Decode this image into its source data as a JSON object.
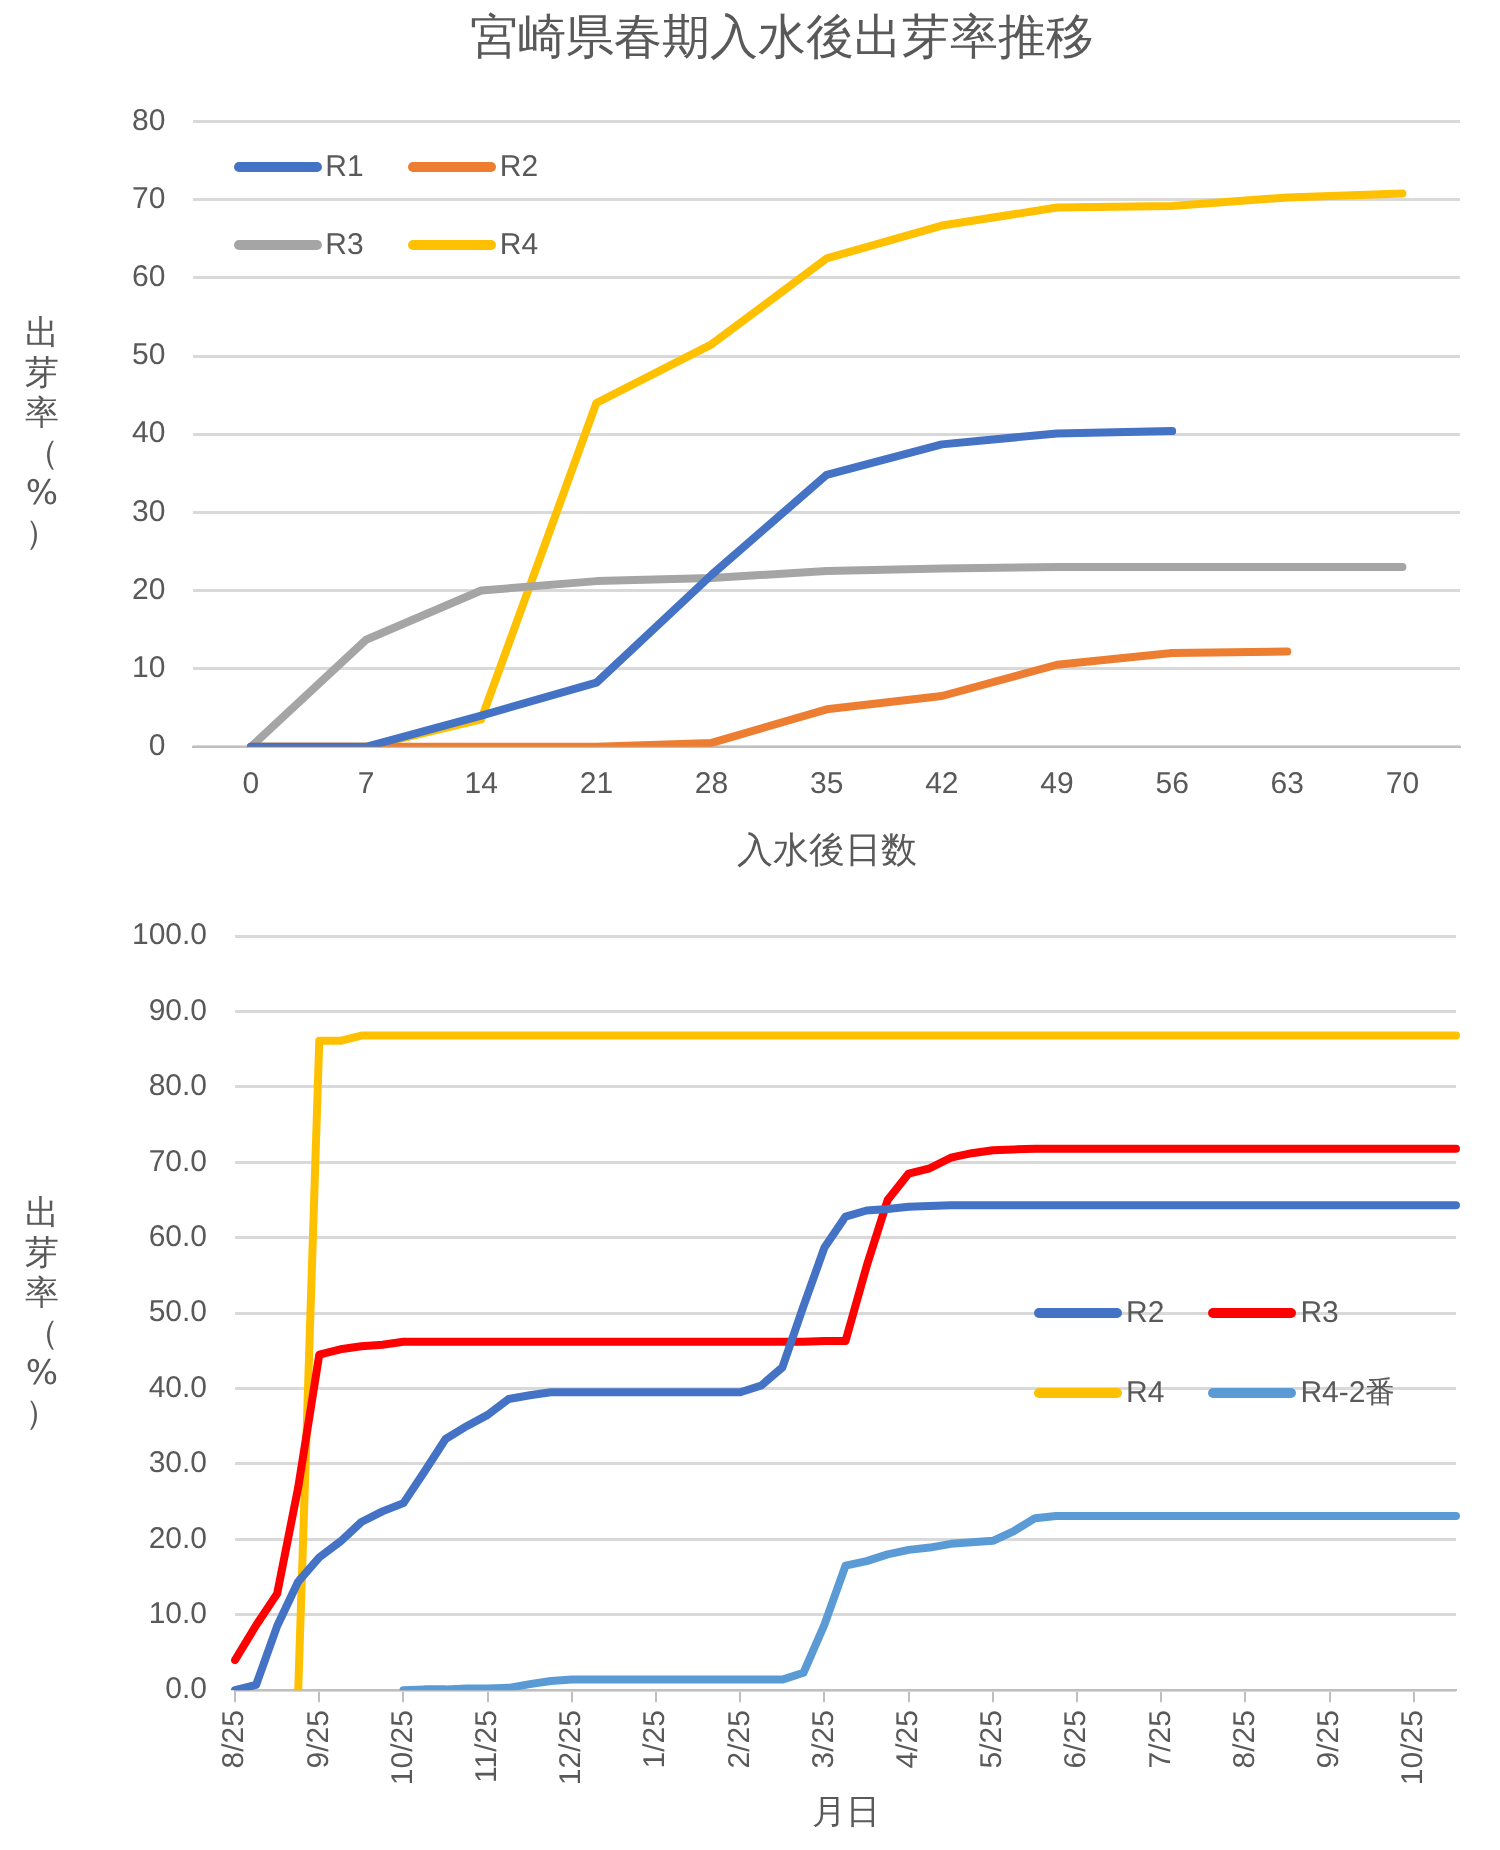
{
  "chart_data": [
    {
      "type": "line",
      "title": "宮崎県春期入水後出芽率推移",
      "xlabel": "入水後日数",
      "ylabel": "出芽率（%）",
      "categories": [
        "0",
        "7",
        "14",
        "21",
        "28",
        "35",
        "42",
        "49",
        "56",
        "63",
        "70"
      ],
      "series": [
        {
          "name": "R1",
          "color": "#4472c4",
          "values": [
            0,
            0,
            4,
            8.2,
            22,
            34.8,
            38.7,
            40.1,
            40.4,
            null,
            null
          ]
        },
        {
          "name": "R2",
          "color": "#ed7d31",
          "values": [
            0,
            0,
            0,
            0,
            0.5,
            4.8,
            6.5,
            10.5,
            12,
            12.2,
            null
          ]
        },
        {
          "name": "R3",
          "color": "#a5a5a5",
          "values": [
            0,
            13.7,
            20,
            21.2,
            21.6,
            22.5,
            22.8,
            23,
            23,
            23,
            23
          ]
        },
        {
          "name": "R4",
          "color": "#ffc000",
          "values": [
            0,
            0,
            3.5,
            44,
            51.5,
            62.5,
            66.7,
            69,
            69.2,
            70.3,
            70.8
          ]
        }
      ],
      "ylim": [
        0,
        80
      ],
      "yticks": [
        0,
        10,
        20,
        30,
        40,
        50,
        60,
        70,
        80
      ],
      "grid": "y",
      "legend": "top left"
    },
    {
      "type": "line",
      "xlabel": "月日",
      "ylabel": "出芽率（%）",
      "categories": [
        "8/25",
        null,
        null,
        null,
        "9/25",
        null,
        null,
        null,
        "10/25",
        null,
        null,
        null,
        "11/25",
        null,
        null,
        null,
        "12/25",
        null,
        null,
        null,
        "1/25",
        null,
        null,
        null,
        "2/25",
        null,
        null,
        null,
        "3/25",
        null,
        null,
        null,
        "4/25",
        null,
        null,
        null,
        "5/25",
        null,
        null,
        null,
        "6/25",
        null,
        null,
        null,
        "7/25",
        null,
        null,
        null,
        "8/25",
        null,
        null,
        null,
        "9/25",
        null,
        null,
        null,
        "10/25",
        null,
        null
      ],
      "series": [
        {
          "name": "R2",
          "color": "#4472c4",
          "values": [
            0,
            0.7,
            8.5,
            14.4,
            17.6,
            19.7,
            22.3,
            23.7,
            24.8,
            29,
            33.3,
            35,
            36.5,
            38.6,
            39.1,
            39.5,
            39.5,
            39.5,
            39.5,
            39.5,
            39.5,
            39.5,
            39.5,
            39.5,
            39.5,
            40.4,
            42.8,
            50.9,
            58.7,
            62.8,
            63.6,
            63.8,
            64.1,
            64.2,
            64.3,
            64.3,
            64.3,
            64.3,
            64.3,
            64.3,
            64.3,
            64.3,
            64.3,
            64.3,
            64.3,
            64.3,
            64.3,
            64.3,
            64.3,
            64.3,
            64.3,
            64.3,
            64.3,
            64.3,
            64.3,
            64.3,
            64.3,
            64.3,
            64.3
          ]
        },
        {
          "name": "R3",
          "color": "#ff0000",
          "values": [
            4,
            8.6,
            12.8,
            26.9,
            44.5,
            45.2,
            45.6,
            45.8,
            46.2,
            46.2,
            46.2,
            46.2,
            46.2,
            46.2,
            46.2,
            46.2,
            46.2,
            46.2,
            46.2,
            46.2,
            46.2,
            46.2,
            46.2,
            46.2,
            46.2,
            46.2,
            46.2,
            46.2,
            46.3,
            46.3,
            56.2,
            65,
            68.5,
            69.2,
            70.6,
            71.2,
            71.6,
            71.7,
            71.8,
            71.8,
            71.8,
            71.8,
            71.8,
            71.8,
            71.8,
            71.8,
            71.8,
            71.8,
            71.8,
            71.8,
            71.8,
            71.8,
            71.8,
            71.8,
            71.8,
            71.8,
            71.8,
            71.8,
            71.8
          ]
        },
        {
          "name": "R4",
          "color": "#ffc000",
          "values": [
            null,
            null,
            null,
            0,
            86.1,
            86.1,
            86.8,
            86.8,
            86.8,
            86.8,
            86.8,
            86.8,
            86.8,
            86.8,
            86.8,
            86.8,
            86.8,
            86.8,
            86.8,
            86.8,
            86.8,
            86.8,
            86.8,
            86.8,
            86.8,
            86.8,
            86.8,
            86.8,
            86.8,
            86.8,
            86.8,
            86.8,
            86.8,
            86.8,
            86.8,
            86.8,
            86.8,
            86.8,
            86.8,
            86.8,
            86.8,
            86.8,
            86.8,
            86.8,
            86.8,
            86.8,
            86.8,
            86.8,
            86.8,
            86.8,
            86.8,
            86.8,
            86.8,
            86.8,
            86.8,
            86.8,
            86.8,
            86.8,
            86.8
          ]
        },
        {
          "name": "R4-2番",
          "color": "#5b9bd5",
          "values": [
            null,
            null,
            null,
            null,
            null,
            null,
            null,
            null,
            0,
            0.1,
            0.1,
            0.2,
            0.2,
            0.3,
            0.8,
            1.2,
            1.4,
            1.4,
            1.4,
            1.4,
            1.4,
            1.4,
            1.4,
            1.4,
            1.4,
            1.4,
            1.4,
            2.3,
            8.7,
            16.5,
            17.1,
            18,
            18.6,
            18.9,
            19.4,
            19.6,
            19.8,
            21.1,
            22.8,
            23.1,
            23.1,
            23.1,
            23.1,
            23.1,
            23.1,
            23.1,
            23.1,
            23.1,
            23.1,
            23.1,
            23.1,
            23.1,
            23.1,
            23.1,
            23.1,
            23.1,
            23.1,
            23.1,
            23.1
          ]
        }
      ],
      "ylim": [
        0,
        100
      ],
      "yticks": [
        {
          "value": 0,
          "label": "0.0"
        },
        {
          "value": 10,
          "label": "10.0"
        },
        {
          "value": 20,
          "label": "20.0"
        },
        {
          "value": 30,
          "label": "30.0"
        },
        {
          "value": 40,
          "label": "40.0"
        },
        {
          "value": 50,
          "label": "50.0"
        },
        {
          "value": 60,
          "label": "60.0"
        },
        {
          "value": 70,
          "label": "70.0"
        },
        {
          "value": 80,
          "label": "80.0"
        },
        {
          "value": 90,
          "label": "90.0"
        },
        {
          "value": 100,
          "label": "100.0"
        }
      ],
      "grid": "y",
      "legend": "right"
    }
  ]
}
